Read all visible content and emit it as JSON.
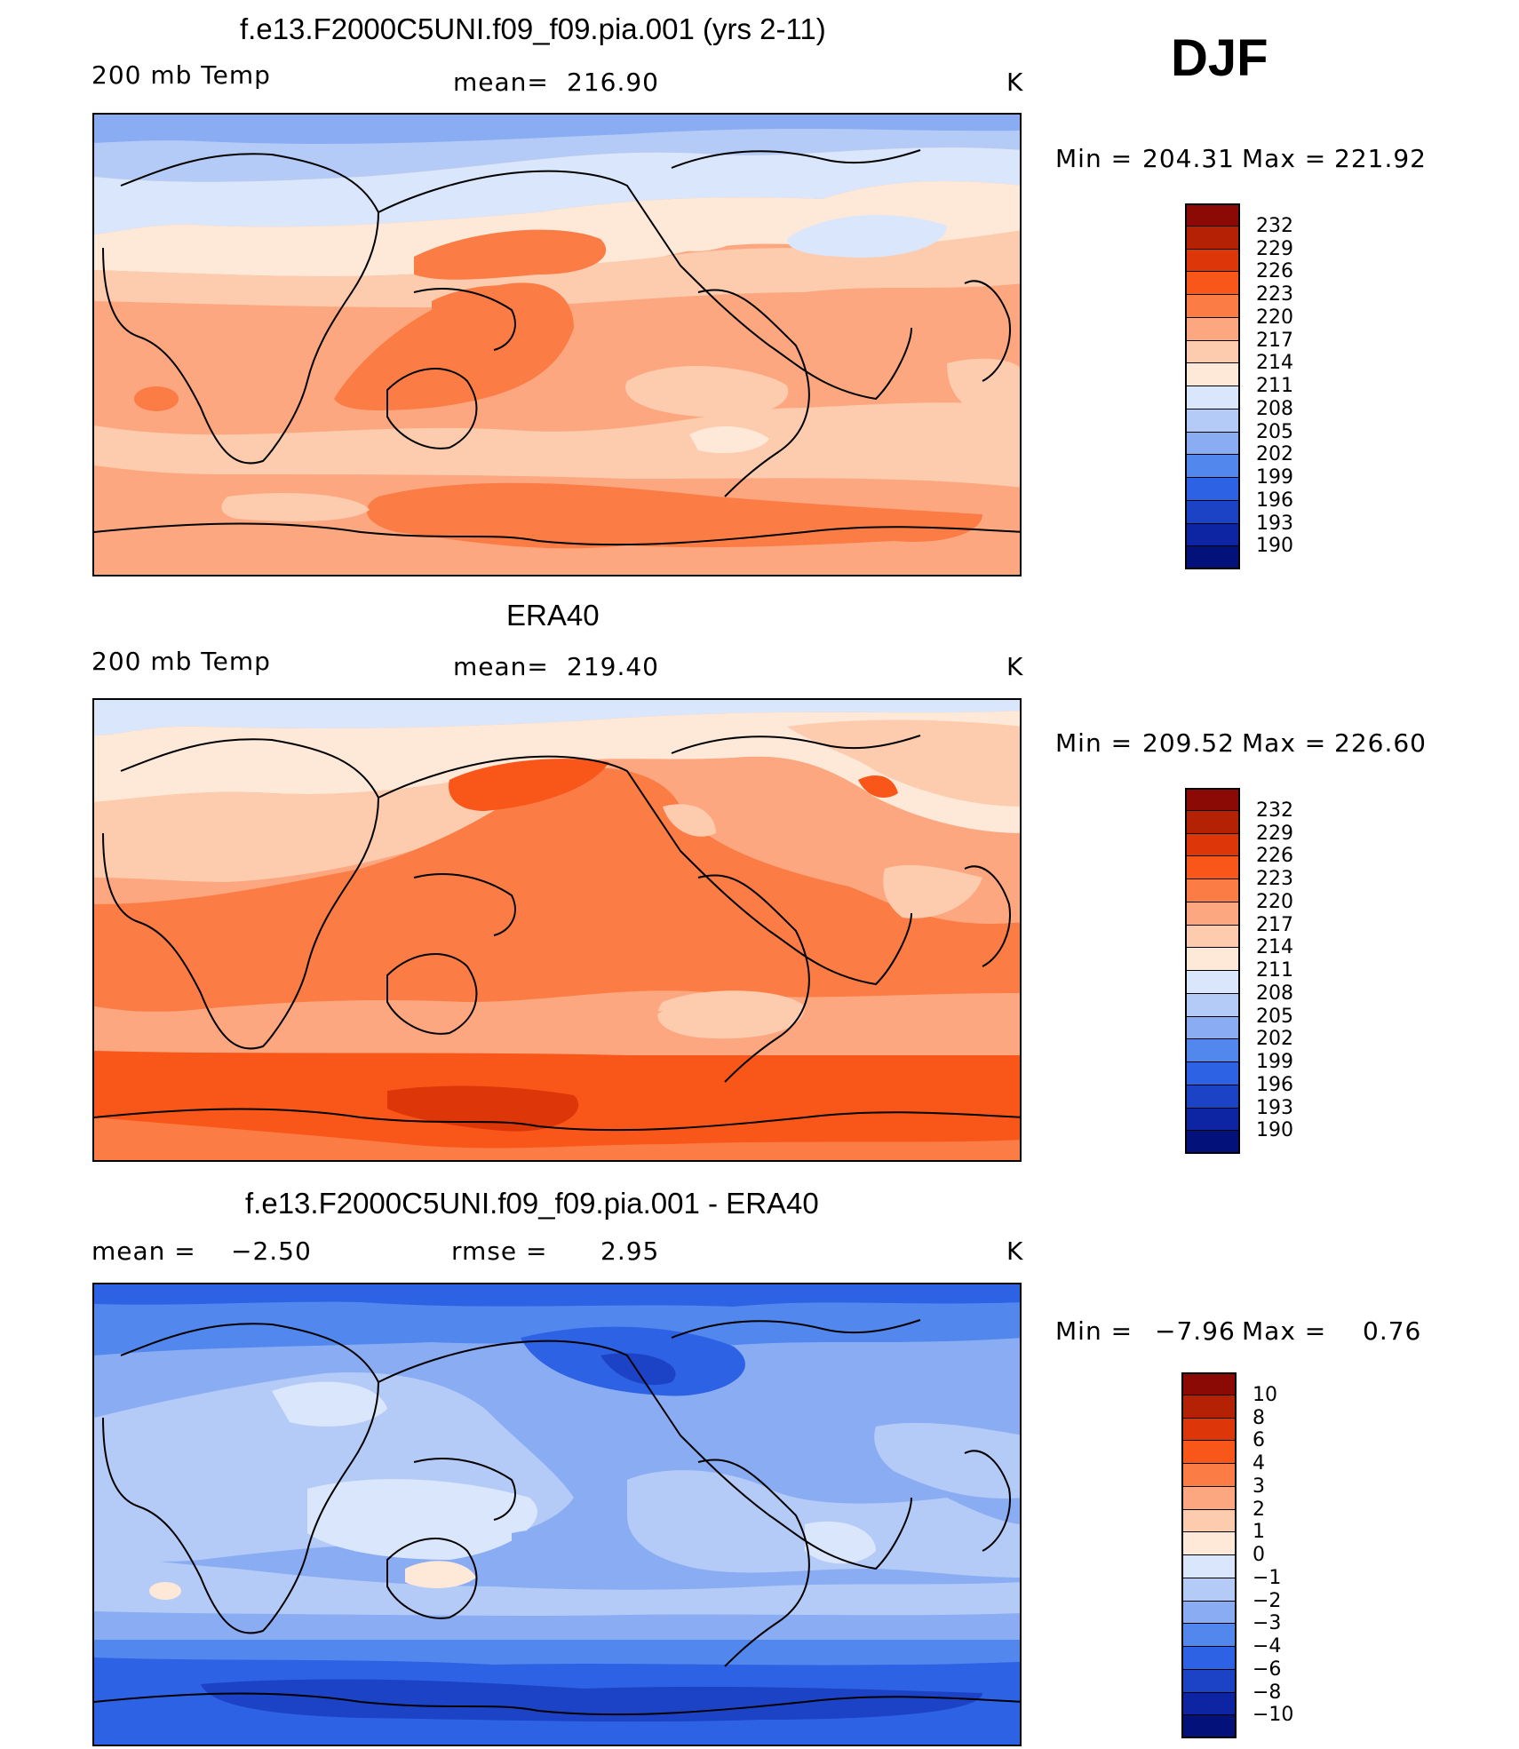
{
  "season": "DJF",
  "units": "K",
  "panels": [
    {
      "title": "f.e13.F2000C5UNI.f09_f09.pia.001 (yrs 2-11)",
      "left_label": "200 mb Temp",
      "mid_label": "mean=",
      "mid_value": "216.90",
      "units": "K",
      "stats": {
        "min_label": "Min =",
        "min": "204.31",
        "max_label": "Max =",
        "max": "221.92"
      }
    },
    {
      "title": "ERA40",
      "left_label": "200 mb Temp",
      "mid_label": "mean=",
      "mid_value": "219.40",
      "units": "K",
      "stats": {
        "min_label": "Min =",
        "min": "209.52",
        "max_label": "Max =",
        "max": "226.60"
      }
    },
    {
      "title": "f.e13.F2000C5UNI.f09_f09.pia.001 - ERA40",
      "left_label": "mean =",
      "left_value": "−2.50",
      "mid_label": "rmse =",
      "mid_value": "2.95",
      "units": "K",
      "stats": {
        "min_label": "Min =",
        "min": "−7.96",
        "max_label": "Max =",
        "max": "0.76"
      }
    }
  ],
  "colorbar_abs": {
    "labels": [
      "232",
      "229",
      "226",
      "223",
      "220",
      "217",
      "214",
      "211",
      "208",
      "205",
      "202",
      "199",
      "196",
      "193",
      "190"
    ],
    "colors": [
      "#8b0a05",
      "#b42105",
      "#dd3608",
      "#f9561a",
      "#fb7c45",
      "#fca77f",
      "#fdcbae",
      "#fee8d8",
      "#dae6fb",
      "#b5cbf7",
      "#8aacf3",
      "#5287ee",
      "#2e62e5",
      "#1c43c6",
      "#0d24a3",
      "#03127a"
    ]
  },
  "colorbar_diff": {
    "labels": [
      "10",
      "8",
      "6",
      "4",
      "3",
      "2",
      "1",
      "0",
      "−1",
      "−2",
      "−3",
      "−4",
      "−6",
      "−8",
      "−10"
    ],
    "colors": [
      "#8b0a05",
      "#b42105",
      "#dd3608",
      "#f9561a",
      "#fb7c45",
      "#fca77f",
      "#fdcbae",
      "#fee8d8",
      "#dae6fb",
      "#b5cbf7",
      "#8aacf3",
      "#5287ee",
      "#2e62e5",
      "#1c43c6",
      "#0d24a3",
      "#03127a"
    ]
  }
}
